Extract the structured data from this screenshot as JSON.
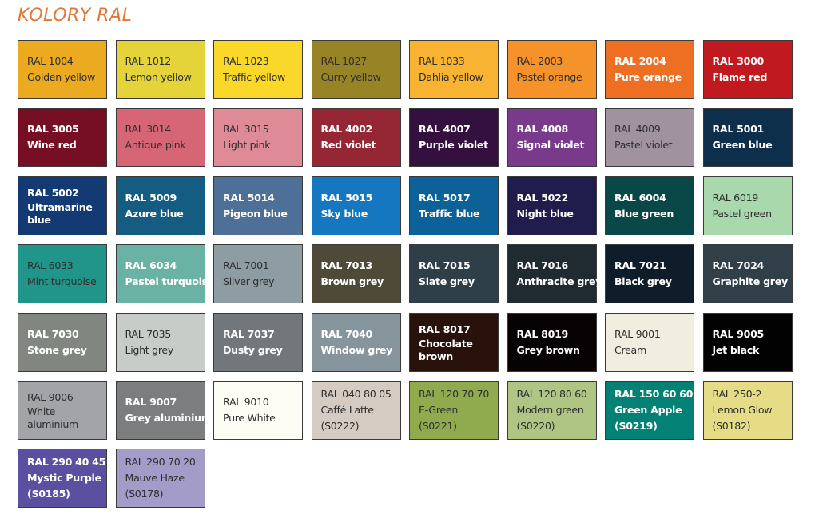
{
  "title": "KOLORY RAL",
  "swatches": [
    {
      "code": "RAL 1004",
      "name": "Golden yellow",
      "color": "#EBAA1F",
      "text": "dark"
    },
    {
      "code": "RAL 1012",
      "name": "Lemon yellow",
      "color": "#E5D33A",
      "text": "dark"
    },
    {
      "code": "RAL 1023",
      "name": "Traffic yellow",
      "color": "#FAD82A",
      "text": "dark"
    },
    {
      "code": "RAL 1027",
      "name": "Curry yellow",
      "color": "#968427",
      "text": "dark"
    },
    {
      "code": "RAL 1033",
      "name": "Dahlia yellow",
      "color": "#F9B332",
      "text": "dark"
    },
    {
      "code": "RAL 2003",
      "name": "Pastel orange",
      "color": "#F5922A",
      "text": "dark"
    },
    {
      "code": "RAL 2004",
      "name": "Pure orange",
      "color": "#EE6E22",
      "text": "light"
    },
    {
      "code": "RAL 3000",
      "name": "Flame red",
      "color": "#C11920",
      "text": "light"
    },
    {
      "code": "RAL 3005",
      "name": "Wine red",
      "color": "#770F24",
      "text": "light"
    },
    {
      "code": "RAL 3014",
      "name": "Antique pink",
      "color": "#D66576",
      "text": "dark"
    },
    {
      "code": "RAL 3015",
      "name": "Light pink",
      "color": "#DF8A97",
      "text": "dark"
    },
    {
      "code": "RAL 4002",
      "name": "Red violet",
      "color": "#952634",
      "text": "light"
    },
    {
      "code": "RAL 4007",
      "name": "Purple violet",
      "color": "#34103F",
      "text": "light"
    },
    {
      "code": "RAL 4008",
      "name": "Signal violet",
      "color": "#7A3A8C",
      "text": "light"
    },
    {
      "code": "RAL 4009",
      "name": "Pastel violet",
      "color": "#A0939F",
      "text": "dark"
    },
    {
      "code": "RAL 5001",
      "name": "Green blue",
      "color": "#0D2F4B",
      "text": "light"
    },
    {
      "code": "RAL 5002",
      "name": "Ultramarine blue",
      "color": "#143A74",
      "text": "light",
      "wrap": true
    },
    {
      "code": "RAL 5009",
      "name": "Azure blue",
      "color": "#155C82",
      "text": "light"
    },
    {
      "code": "RAL 5014",
      "name": "Pigeon blue",
      "color": "#4E7098",
      "text": "light"
    },
    {
      "code": "RAL 5015",
      "name": "Sky blue",
      "color": "#1577C0",
      "text": "light"
    },
    {
      "code": "RAL 5017",
      "name": "Traffic blue",
      "color": "#0C6298",
      "text": "light"
    },
    {
      "code": "RAL 5022",
      "name": "Night blue",
      "color": "#201D4D",
      "text": "light"
    },
    {
      "code": "RAL 6004",
      "name": "Blue green",
      "color": "#0A4747",
      "text": "light"
    },
    {
      "code": "RAL 6019",
      "name": "Pastel green",
      "color": "#A9D8AD",
      "text": "dark"
    },
    {
      "code": "RAL 6033",
      "name": "Mint turquoise",
      "color": "#22958A",
      "text": "dark"
    },
    {
      "code": "RAL 6034",
      "name": "Pastel turquoise",
      "color": "#6AB2A3",
      "text": "light"
    },
    {
      "code": "RAL 7001",
      "name": "Silver grey",
      "color": "#8E9CA4",
      "text": "dark"
    },
    {
      "code": "RAL 7013",
      "name": "Brown grey",
      "color": "#4E4A37",
      "text": "light"
    },
    {
      "code": "RAL 7015",
      "name": "Slate grey",
      "color": "#2F3F48",
      "text": "light"
    },
    {
      "code": "RAL 7016",
      "name": "Anthracite grey",
      "color": "#1F2A31",
      "text": "light"
    },
    {
      "code": "RAL 7021",
      "name": "Black grey",
      "color": "#0E1D29",
      "text": "light"
    },
    {
      "code": "RAL 7024",
      "name": "Graphite grey",
      "color": "#313F48",
      "text": "light"
    },
    {
      "code": "RAL 7030",
      "name": "Stone grey",
      "color": "#818780",
      "text": "light"
    },
    {
      "code": "RAL 7035",
      "name": "Light grey",
      "color": "#C7CCC8",
      "text": "dark"
    },
    {
      "code": "RAL 7037",
      "name": "Dusty grey",
      "color": "#71777B",
      "text": "light"
    },
    {
      "code": "RAL 7040",
      "name": "Window grey",
      "color": "#86959B",
      "text": "light"
    },
    {
      "code": "RAL 8017",
      "name": "Chocolate brown",
      "color": "#2A120C",
      "text": "light",
      "wrap": true
    },
    {
      "code": "RAL 8019",
      "name": "Grey brown",
      "color": "#070305",
      "text": "light"
    },
    {
      "code": "RAL 9001",
      "name": "Cream",
      "color": "#F1EEDF",
      "text": "dark"
    },
    {
      "code": "RAL 9005",
      "name": "Jet black",
      "color": "#020203",
      "text": "light"
    },
    {
      "code": "RAL 9006",
      "name": "White aluminium",
      "color": "#A3A4A7",
      "text": "dark",
      "wrap": true
    },
    {
      "code": "RAL 9007",
      "name": "Grey aluminium",
      "color": "#7C7D7F",
      "text": "light"
    },
    {
      "code": "RAL 9010",
      "name": "Pure White",
      "color": "#FDFDF6",
      "text": "dark"
    },
    {
      "code": "RAL 040 80 05",
      "name": "Caffé Latte",
      "sub": "(S0222)",
      "color": "#D6CBC3",
      "text": "dark"
    },
    {
      "code": "RAL 120 70 70",
      "name": "E-Green",
      "sub": "(S0221)",
      "color": "#90AA4E",
      "text": "dark"
    },
    {
      "code": "RAL 120 80 60",
      "name": "Modern green",
      "sub": "(S0220)",
      "color": "#AFC584",
      "text": "dark"
    },
    {
      "code": "RAL 150 60 60",
      "name": "Green Apple",
      "sub": "(S0219)",
      "color": "#028174",
      "text": "light"
    },
    {
      "code": "RAL 250-2",
      "name": "Lemon Glow",
      "sub": "(S0182)",
      "color": "#E6DC85",
      "text": "dark"
    },
    {
      "code": "RAL 290 40 45",
      "name": "Mystic Purple",
      "sub": "(S0185)",
      "color": "#5A4FA0",
      "text": "light"
    },
    {
      "code": "RAL 290 70 20",
      "name": "Mauve Haze",
      "sub": "(S0178)",
      "color": "#A39BC8",
      "text": "dark"
    }
  ]
}
